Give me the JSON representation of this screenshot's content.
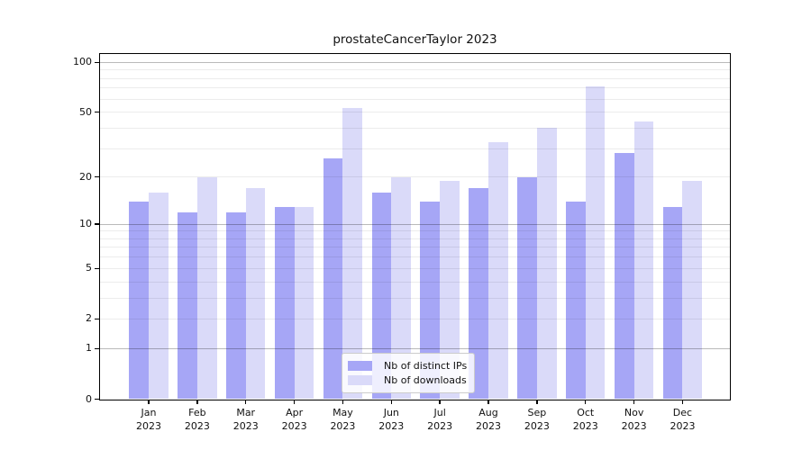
{
  "chart_data": {
    "type": "bar",
    "title": "prostateCancerTaylor 2023",
    "categories": [
      "Jan 2023",
      "Feb 2023",
      "Mar 2023",
      "Apr 2023",
      "May 2023",
      "Jun 2023",
      "Jul 2023",
      "Aug 2023",
      "Sep 2023",
      "Oct 2023",
      "Nov 2023",
      "Dec 2023"
    ],
    "series": [
      {
        "name": "Nb of distinct IPs",
        "color": "#a6a6f6",
        "values": [
          14,
          12,
          12,
          13,
          26,
          16,
          14,
          17,
          20,
          14,
          28,
          13
        ]
      },
      {
        "name": "Nb of downloads",
        "color": "#dadaf9",
        "values": [
          16,
          20,
          17,
          13,
          53,
          20,
          19,
          33,
          40,
          72,
          44,
          19
        ]
      }
    ],
    "yscale": "log1p",
    "ylim": [
      0,
      113
    ],
    "yticks": [
      {
        "v": 100,
        "label": "100"
      },
      {
        "v": 50,
        "label": "50"
      },
      {
        "v": 20,
        "label": "20"
      },
      {
        "v": 10,
        "label": "10"
      },
      {
        "v": 5,
        "label": "5"
      },
      {
        "v": 2,
        "label": "2"
      },
      {
        "v": 1,
        "label": "1"
      },
      {
        "v": 0,
        "label": "0"
      }
    ],
    "minor_gridlines": [
      2,
      3,
      4,
      5,
      6,
      7,
      8,
      9,
      20,
      30,
      40,
      50,
      60,
      70,
      80,
      90
    ],
    "major_gridlines": [
      1,
      10,
      100
    ],
    "grid": true,
    "legend_position": "lower center",
    "xlabel": "",
    "ylabel": ""
  },
  "colors": {
    "minor_grid": "rgba(0,0,0,0.075)",
    "major_grid": "rgba(0,0,0,0.27)",
    "spine": "#000000"
  }
}
